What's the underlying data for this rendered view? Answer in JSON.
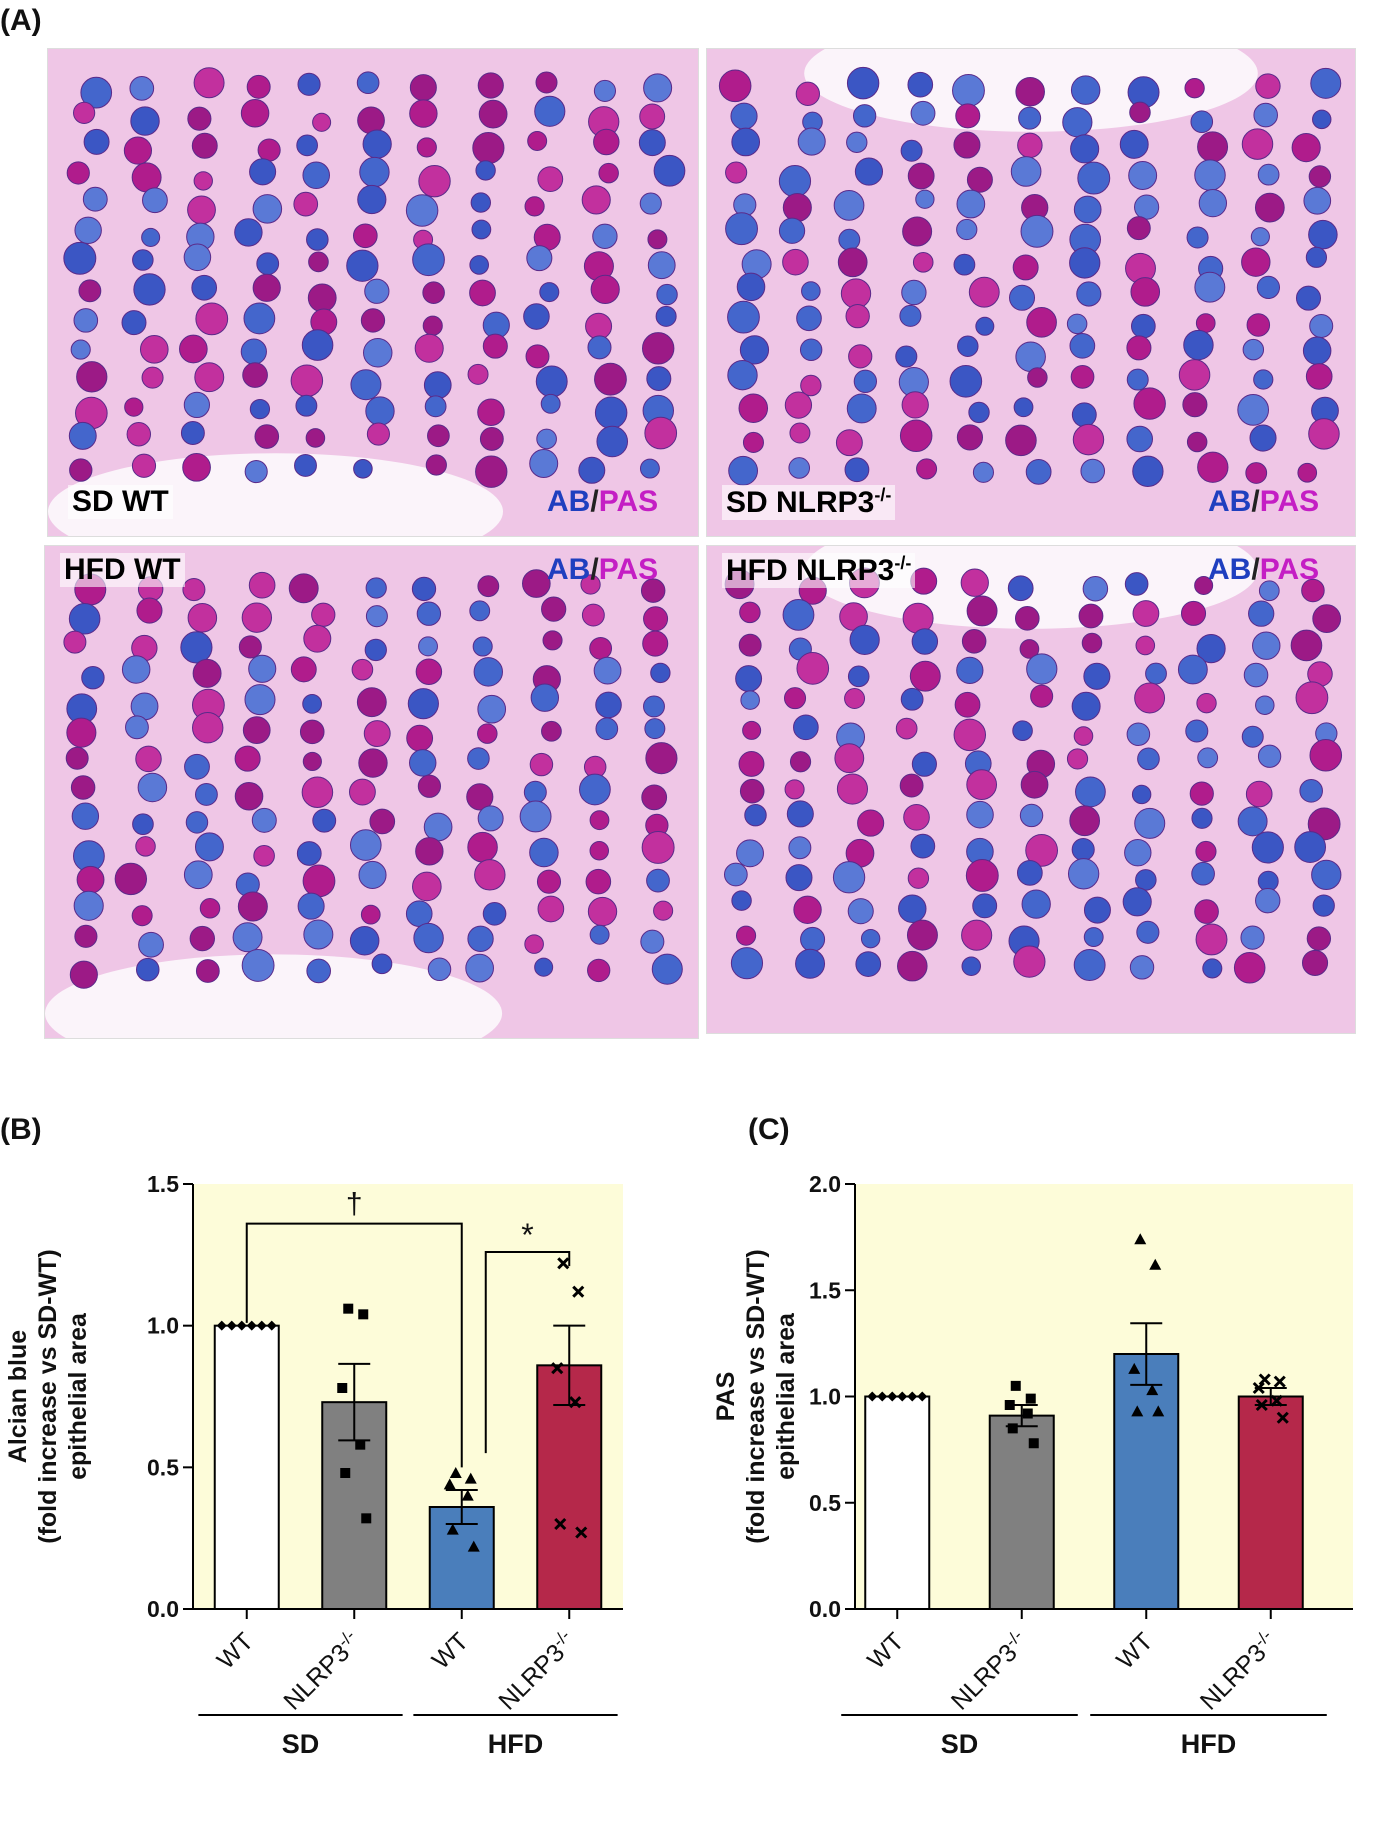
{
  "figure": {
    "panel_a_label": "(A)",
    "panel_b_label": "(B)",
    "panel_c_label": "(C)"
  },
  "micrographs": [
    {
      "label": "SD WT",
      "stain_ab": "AB",
      "stain_sep": "/",
      "stain_pas": "PAS"
    },
    {
      "label": "SD NLRP3-/-",
      "label_main": "SD NLRP3",
      "label_sup": "-/-",
      "stain_ab": "AB",
      "stain_sep": "/",
      "stain_pas": "PAS"
    },
    {
      "label": "HFD WT",
      "stain_ab": "AB",
      "stain_sep": "/",
      "stain_pas": "PAS"
    },
    {
      "label": "HFD NLRP3-/-",
      "label_main": "HFD NLRP3",
      "label_sup": "-/-",
      "stain_ab": "AB",
      "stain_sep": "/",
      "stain_pas": "PAS"
    }
  ],
  "colors": {
    "plot_bg": "#fdfcd9",
    "wt_sd": "#ffffff",
    "nlrp3_sd": "#808080",
    "wt_hfd": "#4a7ebb",
    "nlrp3_hfd": "#b5284a",
    "ab_blue": "#1f3fbf",
    "pas_magenta": "#c41ec4"
  },
  "chart_data": [
    {
      "type": "bar",
      "panel": "(B)",
      "ylabel_lines": [
        "Alcian blue",
        "(fold increase vs SD-WT)",
        "epithelial area"
      ],
      "ylim": [
        0,
        1.5
      ],
      "yticks": [
        "0.0",
        "0.5",
        "1.0",
        "1.5"
      ],
      "categories": [
        "WT",
        "NLRP3-/-",
        "WT",
        "NLRP3-/-"
      ],
      "groups": [
        {
          "name": "SD",
          "span": [
            0,
            1
          ]
        },
        {
          "name": "HFD",
          "span": [
            2,
            3
          ]
        }
      ],
      "values": [
        1.0,
        0.73,
        0.36,
        0.86
      ],
      "sem": [
        0.0,
        0.135,
        0.06,
        0.14
      ],
      "points": [
        [
          1.0,
          1.0,
          1.0,
          1.0,
          1.0,
          1.0
        ],
        [
          1.06,
          1.04,
          0.78,
          0.58,
          0.48,
          0.32
        ],
        [
          0.48,
          0.46,
          0.44,
          0.4,
          0.28,
          0.22
        ],
        [
          1.22,
          1.12,
          0.85,
          0.73,
          0.3,
          0.27
        ]
      ],
      "markers": [
        "diamond",
        "square",
        "triangle",
        "cross"
      ],
      "annotations": [
        {
          "text": "†",
          "from": 0,
          "to": 2
        },
        {
          "text": "*",
          "from": 2,
          "to": 3
        }
      ]
    },
    {
      "type": "bar",
      "panel": "(C)",
      "ylabel_lines": [
        "PAS",
        "(fold increase vs SD-WT)",
        "epithelial area"
      ],
      "ylim": [
        0,
        2.0
      ],
      "yticks": [
        "0.0",
        "0.5",
        "1.0",
        "1.5",
        "2.0"
      ],
      "categories": [
        "WT",
        "NLRP3-/-",
        "WT",
        "NLRP3-/-"
      ],
      "groups": [
        {
          "name": "SD",
          "span": [
            0,
            1
          ]
        },
        {
          "name": "HFD",
          "span": [
            2,
            3
          ]
        }
      ],
      "values": [
        1.0,
        0.91,
        1.2,
        1.0
      ],
      "sem": [
        0.0,
        0.05,
        0.145,
        0.04
      ],
      "points": [
        [
          1.0,
          1.0,
          1.0,
          1.0,
          1.0,
          1.0
        ],
        [
          1.05,
          0.99,
          0.96,
          0.92,
          0.85,
          0.78
        ],
        [
          1.74,
          1.62,
          1.13,
          1.03,
          0.93,
          0.93
        ],
        [
          1.08,
          1.07,
          1.04,
          0.98,
          0.96,
          0.9
        ]
      ],
      "markers": [
        "diamond",
        "square",
        "triangle",
        "cross"
      ],
      "annotations": []
    }
  ]
}
